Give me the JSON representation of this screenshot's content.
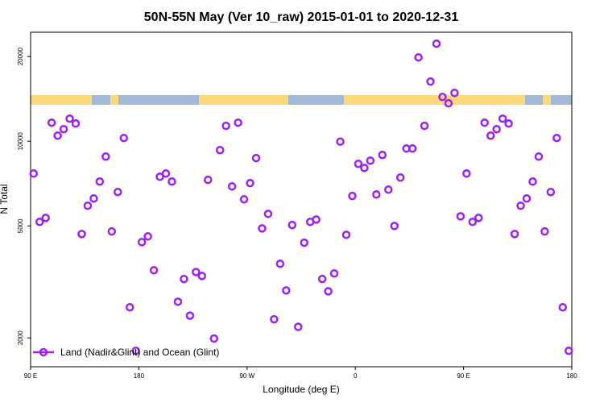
{
  "chart_data": {
    "type": "scatter",
    "title": "50N-55N May (Ver 10_raw)   2015-01-01 to 2020-12-31",
    "x_label": "Longitude (deg E)",
    "y_label": "N Total",
    "log_y": true,
    "xlim": [
      90,
      540
    ],
    "xticks": [
      {
        "value": 90,
        "label": "90 E"
      },
      180,
      {
        "value": 270,
        "label": "90 W"
      },
      {
        "value": 360,
        "label": "0"
      },
      {
        "value": 450,
        "label": "90 E"
      },
      {
        "value": 540,
        "label": "180"
      }
    ],
    "ylim": [
      1580,
      24400
    ],
    "yticks": [
      2000,
      5000,
      10000,
      20000
    ],
    "legend_loc": "lower left",
    "series": [
      {
        "name": "Land (Nadir&Glint) and Ocean (Glint)",
        "color": "#a020f0",
        "x": [
          92.5,
          97.5,
          102.5,
          107.5,
          112.5,
          117.5,
          122.5,
          127.5,
          132.5,
          137.5,
          142.5,
          147.5,
          152.5,
          157.5,
          162.5,
          167.5,
          172.5,
          177.5,
          182.5,
          187.5,
          192.5,
          197.5,
          202.5,
          207.5,
          212.5,
          217.5,
          222.5,
          227.5,
          232.5,
          237.5,
          242.5,
          247.5,
          252.5,
          257.5,
          262.5,
          267.5,
          272.5,
          277.5,
          282.5,
          287.5,
          292.5,
          297.5,
          302.5,
          307.5,
          312.5,
          317.5,
          322.5,
          327.5,
          332.5,
          337.5,
          342.5,
          347.5,
          352.5,
          357.5,
          362.5,
          367.5,
          372.5,
          377.5,
          382.5,
          387.5,
          392.5,
          397.5,
          402.5,
          407.5,
          412.5,
          417.5,
          422.5,
          427.5,
          432.5,
          437.5,
          442.5,
          447.5,
          452.5,
          457.5,
          462.5,
          467.5,
          472.5,
          477.5,
          482.5,
          487.5,
          492.5,
          497.5,
          502.5,
          507.5,
          512.5,
          517.5,
          522.5,
          527.5,
          532.5,
          537.5
        ],
        "values": [
          7680,
          5170,
          5340,
          11640,
          10470,
          11040,
          12030,
          11560,
          4680,
          5900,
          6260,
          7190,
          8820,
          4780,
          6600,
          10270,
          2570,
          1800,
          4380,
          4590,
          3480,
          7480,
          7680,
          7190,
          2690,
          3240,
          2400,
          3430,
          3320,
          7290,
          1990,
          9300,
          11340,
          6910,
          11640,
          6220,
          7100,
          8710,
          4900,
          5520,
          2330,
          3670,
          2950,
          5040,
          2190,
          4360,
          5170,
          5270,
          3240,
          2930,
          3390,
          9970,
          4650,
          6390,
          8310,
          8040,
          8530,
          6470,
          8940,
          6730,
          5000,
          7430,
          9420,
          9420,
          19860,
          11340,
          16300,
          22220,
          14370,
          13640,
          14850,
          5410,
          7680,
          5170,
          5340,
          11640,
          10470,
          11040,
          12030,
          11560,
          4680,
          5900,
          6260,
          7190,
          8820,
          4780,
          6600,
          10270,
          2570,
          1800
        ]
      }
    ]
  }
}
